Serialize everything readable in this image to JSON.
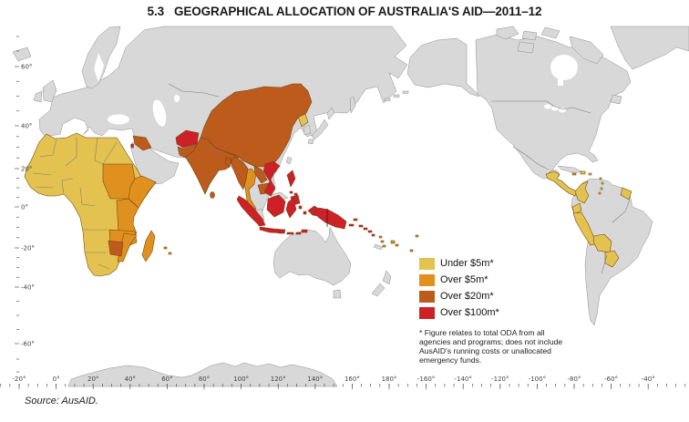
{
  "title": "5.3   GEOGRAPHICAL ALLOCATION OF AUSTRALIA'S AID—2011–12",
  "source": "Source: AusAID.",
  "legend": {
    "items": [
      {
        "key": "under5m",
        "label": "Under $5m*",
        "color": "#e3c24f"
      },
      {
        "key": "over5m",
        "label": "Over $5m*",
        "color": "#e0901e"
      },
      {
        "key": "over20m",
        "label": "Over $20m*",
        "color": "#bc5b1c"
      },
      {
        "key": "over100m",
        "label": "Over $100m*",
        "color": "#cd2027"
      }
    ],
    "footnote": "* Figure relates to total ODA from all agencies and programs; does not include AusAID's running costs or unallocated emergency funds."
  },
  "axes": {
    "lon_labels": [
      "-20°",
      "0°",
      "20°",
      "40°",
      "60°",
      "80°",
      "100°",
      "120°",
      "140°",
      "160°",
      "180°",
      "-160°",
      "-140°",
      "-120°",
      "-100°",
      "-80°",
      "-60°",
      "-40°"
    ],
    "lat_labels": [
      "60°",
      "40°",
      "20°",
      "0°",
      "-20°",
      "-40°",
      "-60°"
    ]
  },
  "map": {
    "projection": "pacific-centred world map",
    "ocean_color": "#ffffff",
    "land_color": "#d8d8d8",
    "category_colors": {
      "under5m": "#e3c24f",
      "over5m": "#e0901e",
      "over20m": "#bc5b1c",
      "over100m": "#cd2027",
      "none": "#d8d8d8"
    },
    "regions": {
      "under5m": [
        "Northern & Western Africa",
        "Egypt",
        "Southern Africa",
        "North Korea",
        "Central America",
        "Caribbean islands",
        "Colombia",
        "Ecuador",
        "Peru",
        "Bolivia",
        "Paraguay",
        "Guyana & Suriname"
      ],
      "over5m": [
        "Sudan",
        "Ethiopia & Somalia",
        "Kenya & Tanzania",
        "Zambia & Malawi",
        "Mozambique",
        "Madagascar",
        "Mongolia",
        "Bhutan",
        "Thailand",
        "Vanuatu",
        "Fiji",
        "Samoa",
        "Tonga",
        "Haiti"
      ],
      "over20m": [
        "Iraq",
        "Pakistan",
        "India",
        "Nepal",
        "Bangladesh",
        "Sri Lanka",
        "Myanmar",
        "Laos",
        "Cambodia",
        "China",
        "Zimbabwe"
      ],
      "over100m": [
        "Afghanistan",
        "Palestinian Territories",
        "Vietnam",
        "Philippines",
        "Indonesia",
        "Timor-Leste",
        "Papua New Guinea",
        "Solomon Islands"
      ]
    }
  }
}
